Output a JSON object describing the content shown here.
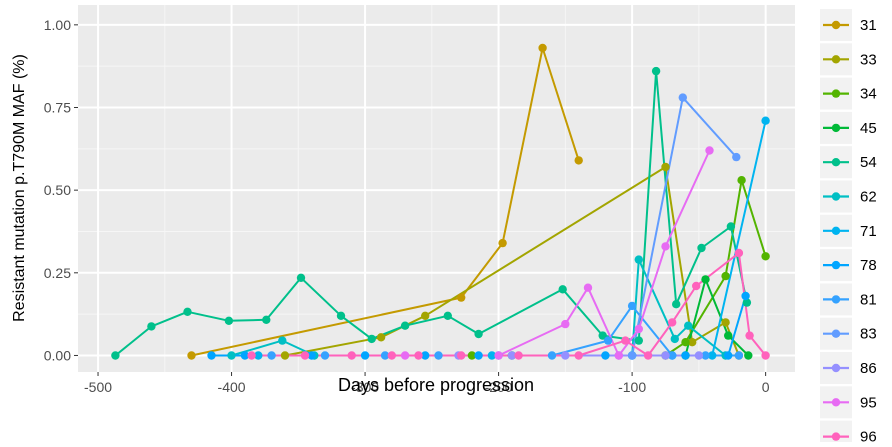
{
  "chart_data": {
    "type": "line",
    "title": "",
    "xlabel": "Days before progression",
    "ylabel": "Resistant mutation p.T790M MAF (%)",
    "xlim": [
      -515,
      22
    ],
    "ylim": [
      -0.05,
      1.06
    ],
    "x_ticks": [
      -500,
      -400,
      -300,
      -200,
      -100,
      0
    ],
    "x_tick_labels": [
      "-500",
      "-400",
      "-300",
      "-200",
      "-100",
      "0"
    ],
    "y_ticks": [
      0,
      0.25,
      0.5,
      0.75,
      1.0
    ],
    "y_tick_labels": [
      "0.00",
      "0.25",
      "0.50",
      "0.75",
      "1.00"
    ],
    "grid": true,
    "legend_position": "right",
    "series": [
      {
        "name": "31",
        "color": "#C49A00",
        "points": [
          [
            -430,
            0
          ],
          [
            -228,
            0.175
          ],
          [
            -197,
            0.34
          ],
          [
            -167,
            0.93
          ],
          [
            -140,
            0.59
          ]
        ]
      },
      {
        "name": "33",
        "color": "#A3A500",
        "points": [
          [
            -360,
            0
          ],
          [
            -288,
            0.055
          ],
          [
            -255,
            0.12
          ],
          [
            -75,
            0.57
          ],
          [
            -55,
            0.04
          ],
          [
            -30,
            0.1
          ],
          [
            -20,
            0
          ]
        ]
      },
      {
        "name": "34",
        "color": "#53B400",
        "points": [
          [
            -220,
            0
          ],
          [
            -75,
            0
          ],
          [
            -60,
            0.04
          ],
          [
            -30,
            0.24
          ],
          [
            -18,
            0.53
          ],
          [
            0,
            0.3
          ]
        ]
      },
      {
        "name": "45",
        "color": "#00B938",
        "points": [
          [
            -190,
            0
          ],
          [
            -60,
            0
          ],
          [
            -45,
            0.23
          ],
          [
            -28,
            0.06
          ],
          [
            -13,
            0
          ]
        ]
      },
      {
        "name": "54",
        "color": "#00C08B",
        "points": [
          [
            -487,
            0
          ],
          [
            -460,
            0.088
          ],
          [
            -433,
            0.132
          ],
          [
            -402,
            0.105
          ],
          [
            -374,
            0.108
          ],
          [
            -348,
            0.235
          ],
          [
            -318,
            0.12
          ],
          [
            -295,
            0.05
          ],
          [
            -270,
            0.09
          ],
          [
            -238,
            0.12
          ],
          [
            -215,
            0.065
          ],
          [
            -152,
            0.2
          ],
          [
            -122,
            0.06
          ],
          [
            -95,
            0.045
          ],
          [
            -82,
            0.86
          ],
          [
            -67,
            0.155
          ],
          [
            -48,
            0.325
          ],
          [
            -26,
            0.39
          ],
          [
            -14,
            0.16
          ]
        ]
      },
      {
        "name": "62",
        "color": "#00BFC4",
        "points": [
          [
            -400,
            0
          ],
          [
            -362,
            0.045
          ],
          [
            -338,
            0
          ],
          [
            -100,
            0
          ],
          [
            -95,
            0.29
          ],
          [
            -68,
            0.05
          ],
          [
            -58,
            0.09
          ],
          [
            -30,
            0
          ]
        ]
      },
      {
        "name": "71",
        "color": "#00B4F0",
        "points": [
          [
            -380,
            0
          ],
          [
            -205,
            0
          ],
          [
            -100,
            0
          ],
          [
            -70,
            0
          ],
          [
            -40,
            0
          ],
          [
            0,
            0.71
          ]
        ]
      },
      {
        "name": "78",
        "color": "#00A5FF",
        "points": [
          [
            -415,
            0
          ],
          [
            -390,
            0
          ],
          [
            -340,
            0
          ],
          [
            -300,
            0
          ],
          [
            -255,
            0
          ],
          [
            -215,
            0
          ],
          [
            -120,
            0
          ],
          [
            -60,
            0
          ],
          [
            -28,
            0
          ],
          [
            -15,
            0.18
          ]
        ]
      },
      {
        "name": "81",
        "color": "#35A2FF",
        "points": [
          [
            -370,
            0
          ],
          [
            -330,
            0
          ],
          [
            -285,
            0
          ],
          [
            -245,
            0
          ],
          [
            -200,
            0
          ],
          [
            -160,
            0
          ],
          [
            -118,
            0.045
          ],
          [
            -100,
            0.15
          ],
          [
            -70,
            0
          ],
          [
            -45,
            0
          ],
          [
            -20,
            0
          ]
        ]
      },
      {
        "name": "83",
        "color": "#619CFF",
        "points": [
          [
            -100,
            0
          ],
          [
            -62,
            0.78
          ],
          [
            -22,
            0.6
          ]
        ]
      },
      {
        "name": "86",
        "color": "#9590FF",
        "points": [
          [
            -230,
            0
          ],
          [
            -190,
            0
          ],
          [
            -150,
            0
          ],
          [
            -110,
            0
          ],
          [
            -75,
            0
          ],
          [
            -50,
            0
          ]
        ]
      },
      {
        "name": "95",
        "color": "#E76BF3",
        "points": [
          [
            -270,
            0
          ],
          [
            -200,
            0
          ],
          [
            -150,
            0.095
          ],
          [
            -133,
            0.205
          ],
          [
            -110,
            0
          ],
          [
            -95,
            0.08
          ],
          [
            -75,
            0.33
          ],
          [
            -42,
            0.62
          ]
        ]
      },
      {
        "name": "96",
        "color": "#FF62BC",
        "points": [
          [
            -385,
            0
          ],
          [
            -345,
            0
          ],
          [
            -310,
            0
          ],
          [
            -280,
            0
          ],
          [
            -260,
            0
          ],
          [
            -228,
            0
          ],
          [
            -185,
            0
          ],
          [
            -140,
            0
          ],
          [
            -105,
            0.045
          ],
          [
            -88,
            0
          ],
          [
            -70,
            0.1
          ],
          [
            -52,
            0.21
          ],
          [
            -20,
            0.31
          ],
          [
            -12,
            0.06
          ],
          [
            0,
            0
          ]
        ]
      }
    ]
  }
}
